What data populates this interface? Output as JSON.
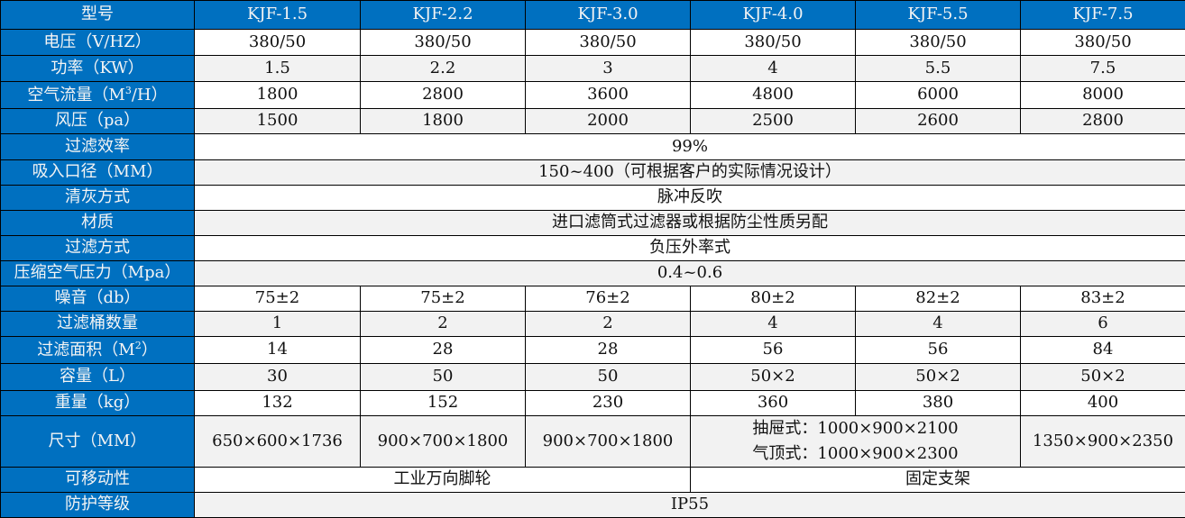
{
  "header": {
    "label": "型号",
    "models": [
      "KJF-1.5",
      "KJF-2.2",
      "KJF-3.0",
      "KJF-4.0",
      "KJF-5.5",
      "KJF-7.5"
    ]
  },
  "rows": {
    "voltage": {
      "label": "电压（V/HZ）",
      "values": [
        "380/50",
        "380/50",
        "380/50",
        "380/50",
        "380/50",
        "380/50"
      ]
    },
    "power": {
      "label": "功率（KW）",
      "values": [
        "1.5",
        "2.2",
        "3",
        "4",
        "5.5",
        "7.5"
      ]
    },
    "airflow": {
      "label_pre": "空气流量（M",
      "label_sup": "3",
      "label_post": "/H）",
      "values": [
        "1800",
        "2800",
        "3600",
        "4800",
        "6000",
        "8000"
      ]
    },
    "pressure": {
      "label": "风压（pa）",
      "values": [
        "1500",
        "1800",
        "2000",
        "2500",
        "2600",
        "2800"
      ]
    },
    "efficiency": {
      "label": "过滤效率",
      "value": "99%"
    },
    "inlet": {
      "label": "吸入口径（MM）",
      "value": "150~400（可根据客户的实际情况设计）"
    },
    "cleaning": {
      "label": "清灰方式",
      "value": "脉冲反吹"
    },
    "material": {
      "label": "材质",
      "value": "进口滤筒式过滤器或根据防尘性质另配"
    },
    "filter_mode": {
      "label": "过滤方式",
      "value": "负压外率式"
    },
    "compressed_air": {
      "label": "压缩空气压力（Mpa）",
      "value": "0.4~0.6"
    },
    "noise": {
      "label": "噪音（db）",
      "values": [
        "75±2",
        "75±2",
        "76±2",
        "80±2",
        "82±2",
        "83±2"
      ]
    },
    "cartridges": {
      "label": "过滤桶数量",
      "values": [
        "1",
        "2",
        "2",
        "4",
        "4",
        "6"
      ]
    },
    "filter_area": {
      "label_pre": "过滤面积（M",
      "label_sup": "2",
      "label_post": "）",
      "values": [
        "14",
        "28",
        "28",
        "56",
        "56",
        "84"
      ]
    },
    "capacity": {
      "label": "容量（L）",
      "values": [
        "30",
        "50",
        "50",
        "50×2",
        "50×2",
        "50×2"
      ]
    },
    "weight": {
      "label": "重量（kg）",
      "values": [
        "132",
        "152",
        "230",
        "360",
        "380",
        "400"
      ]
    },
    "size": {
      "label": "尺寸（MM）",
      "values": [
        "650×600×1736",
        "900×700×1800",
        "900×700×1800"
      ],
      "merged_line1": "抽屉式：1000×900×2100",
      "merged_line2": "气顶式：1000×900×2300",
      "last": "1350×900×2350"
    },
    "mobility": {
      "label": "可移动性",
      "left": "工业万向脚轮",
      "right": "固定支架"
    },
    "protection": {
      "label": "防护等级",
      "value": "IP55"
    }
  },
  "colors": {
    "label_bg": "#0070C0",
    "alt_row": "#f2f2f2"
  }
}
